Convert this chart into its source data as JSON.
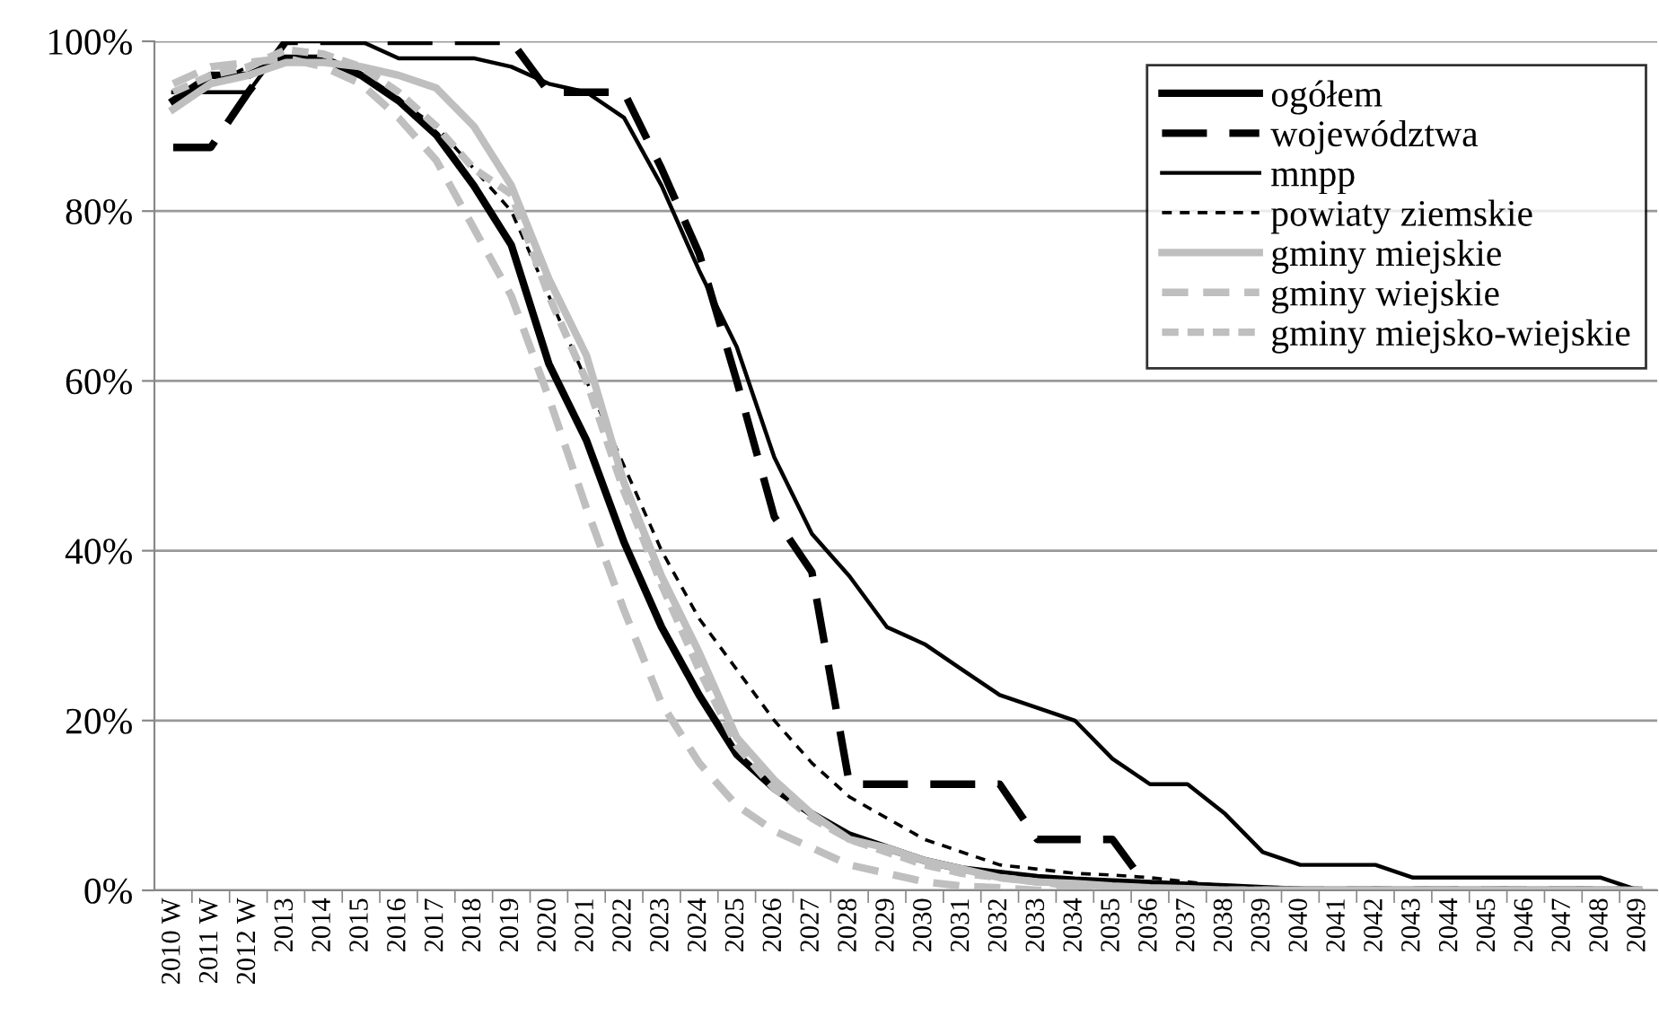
{
  "chart_data": {
    "type": "line",
    "categories": [
      "2010 W",
      "2011 W",
      "2012 W",
      "2013",
      "2014",
      "2015",
      "2016",
      "2017",
      "2018",
      "2019",
      "2020",
      "2021",
      "2022",
      "2023",
      "2024",
      "2025",
      "2026",
      "2027",
      "2028",
      "2029",
      "2030",
      "2031",
      "2032",
      "2033",
      "2034",
      "2035",
      "2036",
      "2037",
      "2038",
      "2039",
      "2040",
      "2041",
      "2042",
      "2043",
      "2044",
      "2045",
      "2046",
      "2047",
      "2048",
      "2049"
    ],
    "ylim": [
      0,
      100
    ],
    "yticks": [
      {
        "value": 0,
        "label": "0%"
      },
      {
        "value": 20,
        "label": "20%"
      },
      {
        "value": 40,
        "label": "40%"
      },
      {
        "value": 60,
        "label": "60%"
      },
      {
        "value": 80,
        "label": "80%"
      },
      {
        "value": 100,
        "label": "100%"
      }
    ],
    "grid": "y",
    "legend": "top right",
    "marker": "none",
    "series": [
      {
        "name": "ogółem",
        "color": "#000000",
        "line_style": "solid",
        "values": [
          93,
          96,
          96,
          98,
          98,
          96,
          93,
          89,
          83,
          76,
          62,
          53,
          41,
          31,
          23,
          16,
          12,
          9,
          6.5,
          5,
          3.5,
          2.5,
          2,
          1.5,
          1.2,
          1,
          0.8,
          0.6,
          0.4,
          0.2,
          0,
          0,
          0,
          0,
          0,
          0,
          0,
          0,
          0,
          0
        ]
      },
      {
        "name": "województwa",
        "color": "#000000",
        "line_style": "dashed",
        "values": [
          87.5,
          87.5,
          94,
          100,
          100,
          100,
          100,
          100,
          100,
          100,
          94,
          94,
          94,
          85,
          75,
          60,
          44,
          37.5,
          12.5,
          12.5,
          12.5,
          12.5,
          12.5,
          6,
          6,
          6,
          0,
          0,
          0,
          0,
          0,
          0,
          0,
          0,
          0,
          0,
          0,
          0,
          0,
          0
        ]
      },
      {
        "name": "mnpp",
        "color": "#000000",
        "line_style": "solid",
        "values": [
          94,
          94,
          94,
          100,
          100,
          100,
          98,
          98,
          98,
          97,
          95,
          94,
          91,
          83,
          73,
          64,
          51,
          42,
          37,
          31,
          29,
          26,
          23,
          21.5,
          20,
          15.5,
          12.5,
          12.5,
          9,
          4.5,
          3,
          3,
          3,
          1.5,
          1.5,
          1.5,
          1.5,
          1.5,
          1.5,
          0
        ]
      },
      {
        "name": "powiaty ziemskie",
        "color": "#000000",
        "line_style": "dashed",
        "values": [
          92,
          95,
          97,
          98,
          97.5,
          96,
          93,
          90,
          85,
          80,
          70,
          60,
          50,
          40,
          32,
          26,
          20,
          15,
          11,
          8.5,
          6,
          4.5,
          3,
          2.5,
          2,
          1.8,
          1.5,
          1,
          0.5,
          0.3,
          0,
          0,
          0,
          0,
          0,
          0,
          0,
          0,
          0,
          0
        ]
      },
      {
        "name": "gminy miejskie",
        "color": "#bfbfbf",
        "line_style": "solid",
        "values": [
          92,
          95,
          96,
          97.5,
          97.5,
          97,
          96,
          94.5,
          90,
          83,
          72,
          63,
          48,
          37,
          28,
          18,
          13,
          9,
          6,
          5,
          3.5,
          2.5,
          1.5,
          1,
          0.8,
          0.5,
          0.3,
          0.2,
          0,
          0,
          0,
          0,
          0,
          0,
          0,
          0,
          0,
          0,
          0,
          0
        ]
      },
      {
        "name": "gminy wiejskie",
        "color": "#bfbfbf",
        "line_style": "dashed",
        "values": [
          95,
          97,
          97.5,
          98,
          97,
          95,
          91,
          86,
          78,
          70,
          58,
          45,
          33,
          22,
          15,
          10,
          7,
          5,
          3,
          2,
          1,
          0.5,
          0.3,
          0,
          0,
          0,
          0,
          0,
          0,
          0,
          0,
          0,
          0,
          0,
          0,
          0,
          0,
          0,
          0,
          0
        ]
      },
      {
        "name": "gminy miejsko-wiejskie",
        "color": "#bfbfbf",
        "line_style": "dashed",
        "values": [
          94,
          96,
          97,
          99,
          98.5,
          97,
          94,
          90,
          85,
          82,
          70,
          60,
          47,
          36,
          26,
          17,
          12,
          8.5,
          6,
          4.5,
          3,
          2,
          1.5,
          1,
          0.5,
          0.3,
          0,
          0,
          0,
          0,
          0,
          0,
          0,
          0,
          0,
          0,
          0,
          0,
          0,
          0
        ]
      }
    ]
  }
}
